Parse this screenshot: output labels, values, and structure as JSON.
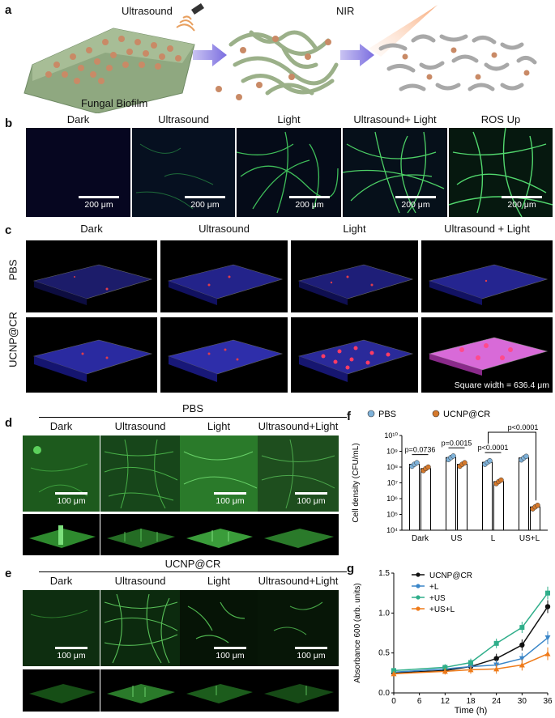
{
  "panel_a": {
    "label": "a",
    "ultrasound": "Ultrasound",
    "nir": "NIR",
    "biofilm": "Fungal Biofilm"
  },
  "panel_b": {
    "label": "b",
    "columns": [
      "Dark",
      "Ultrasound",
      "Light",
      "Ultrasound+ Light",
      "ROS Up"
    ],
    "scale": "200 μm"
  },
  "panel_c": {
    "label": "c",
    "columns": [
      "Dark",
      "Ultrasound",
      "Light",
      "Ultrasound + Light"
    ],
    "rows": [
      "PBS",
      "UCNP@CR"
    ],
    "square_width": "Square width = 636.4 μm"
  },
  "panel_d": {
    "label": "d",
    "group": "PBS",
    "columns": [
      "Dark",
      "Ultrasound",
      "Light",
      "Ultrasound+Light"
    ],
    "scale": "100 μm"
  },
  "panel_e": {
    "label": "e",
    "group": "UCNP@CR",
    "columns": [
      "Dark",
      "Ultrasound",
      "Light",
      "Ultrasound+Light"
    ],
    "scale": "100 μm"
  },
  "panel_f": {
    "label": "f",
    "chart_data": {
      "type": "bar",
      "ylabel": "Cell density (CFU/mL)",
      "y_scale": "log",
      "ylim": [
        10000,
        10000000000
      ],
      "y_ticks": [
        "10⁴",
        "10⁵",
        "10⁶",
        "10⁷",
        "10⁸",
        "10⁹",
        "10¹⁰"
      ],
      "categories": [
        "Dark",
        "US",
        "L",
        "US+L"
      ],
      "series": [
        {
          "name": "PBS",
          "color": "#7fb2d9",
          "values": [
            150000000,
            400000000,
            200000000,
            380000000
          ]
        },
        {
          "name": "UCNP@CR",
          "color": "#d5792c",
          "values": [
            80000000,
            150000000,
            12000000,
            300000
          ]
        }
      ],
      "annotations": [
        "p=0.0736",
        "p=0.0015",
        "p<0.0001",
        "p<0.0001"
      ]
    }
  },
  "panel_g": {
    "label": "g",
    "chart_data": {
      "type": "line",
      "xlabel": "Time (h)",
      "ylabel": "Absorbance 600 (arb. units)",
      "x": [
        0,
        12,
        18,
        24,
        30,
        36
      ],
      "x_ticks": [
        "0",
        "6",
        "12",
        "18",
        "24",
        "30",
        "36"
      ],
      "y_ticks": [
        "0.0",
        "0.5",
        "1.0",
        "1.5"
      ],
      "xlim": [
        0,
        36
      ],
      "ylim": [
        0,
        1.5
      ],
      "series": [
        {
          "name": "UCNP@CR",
          "color": "#111111",
          "marker": "circle",
          "values": [
            0.25,
            0.28,
            0.33,
            0.43,
            0.6,
            1.08
          ]
        },
        {
          "name": "+L",
          "color": "#3a86c8",
          "marker": "triangle-down",
          "values": [
            0.26,
            0.3,
            0.33,
            0.35,
            0.43,
            0.69
          ]
        },
        {
          "name": "+US",
          "color": "#2fae8a",
          "marker": "square",
          "values": [
            0.28,
            0.32,
            0.38,
            0.62,
            0.82,
            1.25
          ]
        },
        {
          "name": "+US+L",
          "color": "#ef7b1a",
          "marker": "triangle-up",
          "values": [
            0.24,
            0.27,
            0.29,
            0.3,
            0.35,
            0.49
          ]
        }
      ]
    }
  }
}
